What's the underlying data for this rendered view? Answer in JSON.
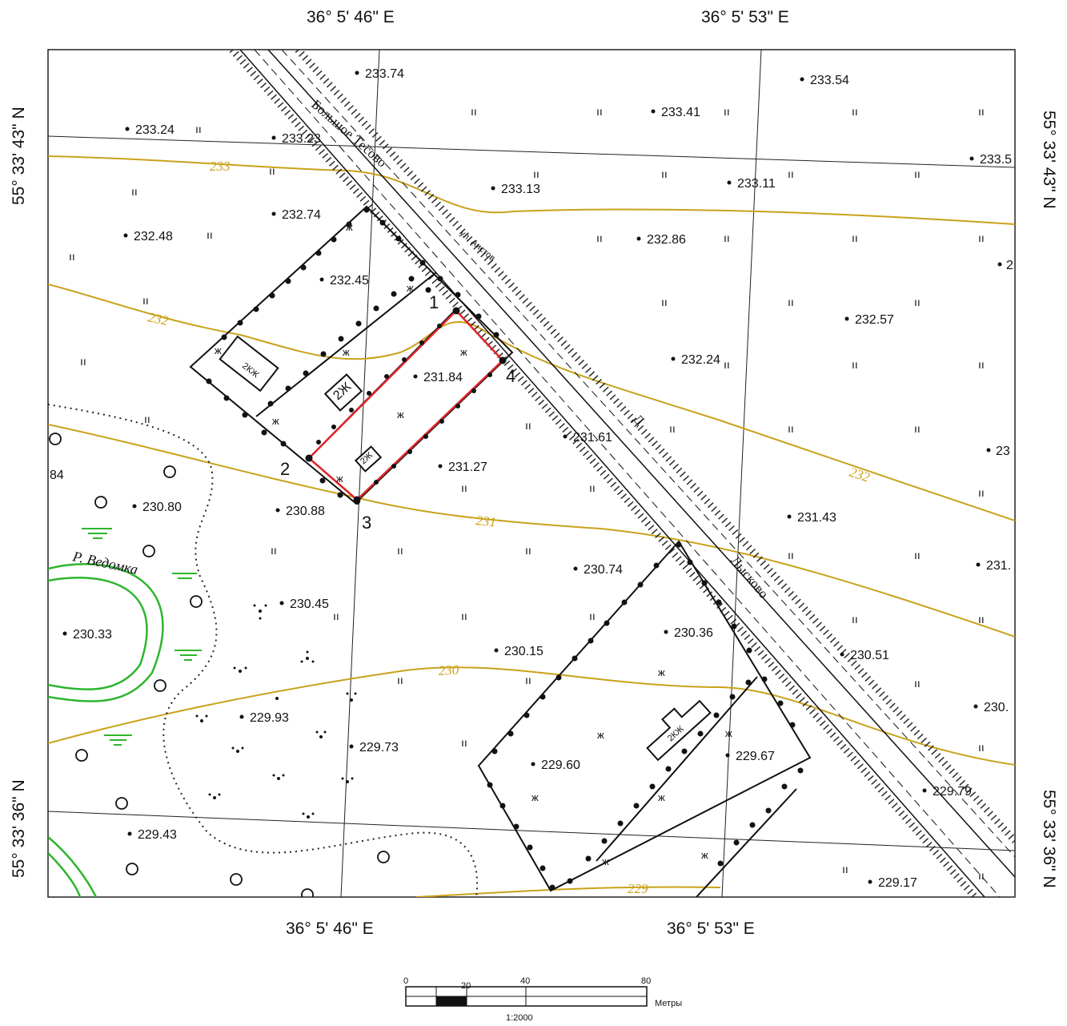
{
  "coords": {
    "top_left": "36° 5' 46\" E",
    "top_right": "36° 5' 53\" E",
    "bottom_left": "36° 5' 46\" E",
    "bottom_right": "36° 5' 53\" E",
    "left_top": "55° 33' 43\" N",
    "left_bottom": "55° 33' 36\" N",
    "right_top": "55° 33' 43\" N",
    "right_bottom": "55° 33' 36\" N"
  },
  "elevations": [
    "233.74",
    "233.54",
    "233.24",
    "233.23",
    "233.41",
    "233.13",
    "233.11",
    "233.5",
    "232.74",
    "232.48",
    "232.86",
    "232.45",
    "232.57",
    "232.24",
    "2",
    "231.84",
    "231.61",
    "231.27",
    "23",
    "230.80",
    "230.88",
    "231.43",
    "230.74",
    "231.",
    "230.45",
    "230.33",
    "230.36",
    "230.15",
    "230.51",
    "229.93",
    "229.73",
    "230.",
    "229.60",
    "229.67",
    "229.79",
    "229.43",
    "229.17",
    "84"
  ],
  "contours": [
    "233",
    "232",
    "231",
    "230",
    "232",
    "229"
  ],
  "roads": {
    "main_upper": "Большое Тесово",
    "main_lower": "Лысково",
    "street": "ул. Аистов",
    "letter": "Д"
  },
  "river": "Р. Ведомка",
  "buildings": [
    "2КЖ",
    "2Ж",
    "2Ж",
    "2КЖ"
  ],
  "corners": [
    "1",
    "2",
    "3",
    "4"
  ],
  "scale": {
    "ticks": [
      "0",
      "20",
      "40",
      "80"
    ],
    "unit": "Метры",
    "ratio": "1:2000"
  },
  "colors": {
    "contour": "#c9a21a",
    "river": "#2db52d",
    "parcel": "#e0262a",
    "outline": "#111111"
  }
}
